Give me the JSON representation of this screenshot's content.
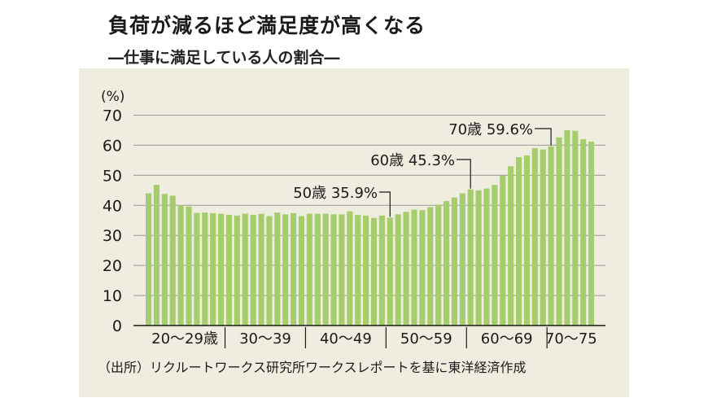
{
  "header": {
    "title": "負荷が減るほど満足度が高くなる",
    "subtitle": "―仕事に満足している人の割合―",
    "accent_color": "#d6101d"
  },
  "source": "（出所）リクルートワークス研究所ワークスレポートを基に東洋経済作成",
  "chart_data": {
    "type": "bar",
    "title": "負荷が減るほど満足度が高くなる",
    "subtitle": "仕事に満足している人の割合",
    "ylabel": "(%)",
    "xlabel": "",
    "ylim": [
      0,
      70
    ],
    "yticks": [
      0,
      10,
      20,
      30,
      40,
      50,
      60,
      70
    ],
    "grid": true,
    "bar_color": "#a6cd6b",
    "x": [
      20,
      21,
      22,
      23,
      24,
      25,
      26,
      27,
      28,
      29,
      30,
      31,
      32,
      33,
      34,
      35,
      36,
      37,
      38,
      39,
      40,
      41,
      42,
      43,
      44,
      45,
      46,
      47,
      48,
      49,
      50,
      51,
      52,
      53,
      54,
      55,
      56,
      57,
      58,
      59,
      60,
      61,
      62,
      63,
      64,
      65,
      66,
      67,
      68,
      69,
      70,
      71,
      72,
      73,
      74,
      75
    ],
    "values": [
      44.0,
      46.8,
      43.8,
      43.2,
      40.0,
      39.6,
      37.5,
      37.6,
      37.4,
      37.2,
      36.8,
      36.6,
      37.2,
      36.8,
      37.2,
      36.4,
      37.6,
      37.0,
      37.4,
      36.4,
      37.2,
      37.2,
      37.2,
      37.0,
      37.0,
      38.0,
      36.8,
      36.6,
      35.8,
      36.6,
      35.9,
      37.0,
      37.8,
      38.6,
      38.4,
      39.4,
      40.2,
      41.4,
      42.6,
      44.0,
      45.3,
      45.0,
      45.6,
      46.8,
      49.8,
      53.0,
      56.0,
      56.6,
      59.0,
      58.6,
      59.6,
      62.6,
      65.0,
      64.8,
      62.0,
      61.2
    ],
    "groups": [
      "20〜29歳",
      "30〜39",
      "40〜49",
      "50〜59",
      "60〜69",
      "70〜75"
    ],
    "annotations": [
      {
        "label": "50歳 35.9%",
        "x": 50,
        "value": 35.9
      },
      {
        "label": "60歳 45.3%",
        "x": 60,
        "value": 45.3
      },
      {
        "label": "70歳 59.6%",
        "x": 70,
        "value": 59.6
      }
    ]
  }
}
